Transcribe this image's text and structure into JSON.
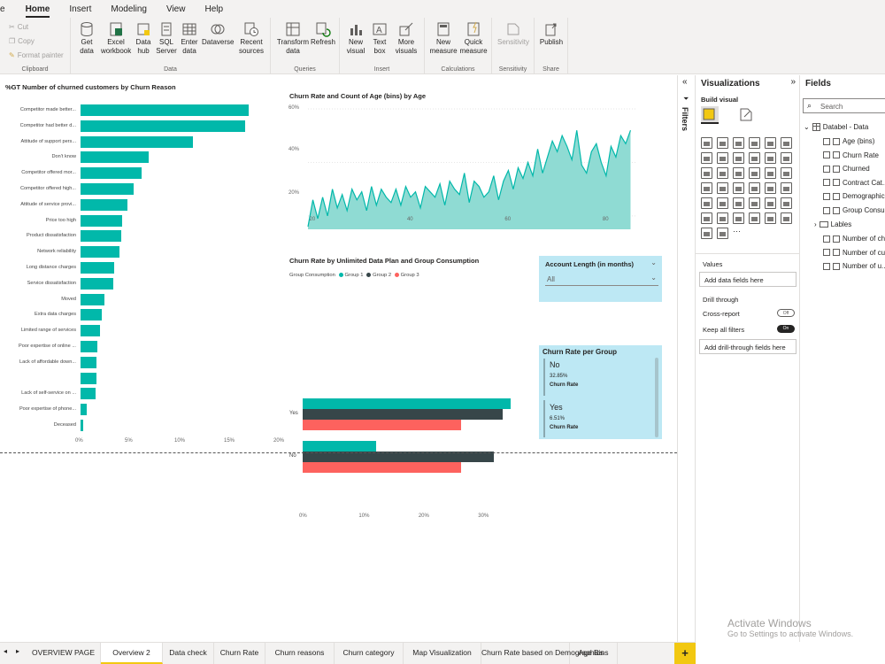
{
  "menu": {
    "tabs": [
      "e",
      "Home",
      "Insert",
      "Modeling",
      "View",
      "Help"
    ],
    "active": "Home"
  },
  "ribbon": {
    "clipboard": {
      "cut": "Cut",
      "copy": "Copy",
      "format_painter": "Format painter",
      "label": "Clipboard"
    },
    "data": {
      "get_data": "Get\ndata",
      "excel": "Excel\nworkbook",
      "data_hub": "Data\nhub",
      "sql": "SQL\nServer",
      "enter": "Enter\ndata",
      "dataverse": "Dataverse",
      "recent": "Recent\nsources",
      "label": "Data"
    },
    "queries": {
      "transform": "Transform\ndata",
      "refresh": "Refresh",
      "label": "Queries"
    },
    "insert": {
      "new_visual": "New\nvisual",
      "text_box": "Text\nbox",
      "more_visuals": "More\nvisuals",
      "label": "Insert"
    },
    "calculations": {
      "new_measure": "New\nmeasure",
      "quick_measure": "Quick\nmeasure",
      "label": "Calculations"
    },
    "sensitivity": {
      "btn": "Sensitivity",
      "label": "Sensitivity"
    },
    "share": {
      "publish": "Publish",
      "label": "Share"
    }
  },
  "churn_reason_chart": {
    "title": "%GT Number of churned customers by Churn Reason",
    "x_ticks": [
      "0%",
      "5%",
      "10%",
      "15%",
      "20%"
    ]
  },
  "age_chart": {
    "title": "Churn Rate and Count of Age (bins) by Age",
    "y_ticks": [
      "60%",
      "40%",
      "20%"
    ],
    "x_ticks": [
      "20",
      "40",
      "60",
      "80"
    ]
  },
  "plan_chart": {
    "title": "Churn Rate by Unlimited Data Plan and Group Consumption",
    "legend_title": "Group Consumption",
    "legend": [
      "Group 1",
      "Group 2",
      "Group 3"
    ],
    "x_ticks": [
      "0%",
      "10%",
      "20%",
      "30%"
    ]
  },
  "slicer": {
    "title": "Account Length (in months)",
    "value": "All"
  },
  "card": {
    "title": "Churn Rate per Group",
    "items": [
      {
        "label": "No",
        "value": "32.85%",
        "caption": "Churn Rate"
      },
      {
        "label": "Yes",
        "value": "6.51%",
        "caption": "Churn Rate"
      }
    ]
  },
  "chart_data": [
    {
      "type": "bar",
      "title": "%GT Number of churned customers by Churn Reason",
      "orientation": "horizontal",
      "categories": [
        "Competitor made better...",
        "Competitor had better d...",
        "Attitude of support pers...",
        "Don't know",
        "Competitor offered mor...",
        "Competitor offered high...",
        "Attitude of service provi...",
        "Price too high",
        "Product dissatisfaction",
        "Network reliability",
        "Long distance charges",
        "Service dissatisfaction",
        "Moved",
        "Extra data charges",
        "Limited range of services",
        "Poor expertise of online ...",
        "Lack of affordable down...",
        "",
        "Lack of self-service on ...",
        "Poor expertise of phone...",
        "Deceased"
      ],
      "values": [
        17.0,
        16.6,
        11.3,
        6.9,
        6.2,
        5.4,
        4.7,
        4.2,
        4.1,
        3.9,
        3.4,
        3.3,
        2.4,
        2.1,
        2.0,
        1.7,
        1.6,
        1.6,
        1.5,
        0.6,
        0.3
      ],
      "xlim": [
        0,
        20
      ],
      "color": "#01b8aa"
    },
    {
      "type": "area",
      "title": "Churn Rate and Count of Age (bins) by Age",
      "x": [
        19,
        20,
        21,
        22,
        23,
        24,
        25,
        26,
        27,
        28,
        29,
        30,
        31,
        32,
        33,
        34,
        35,
        36,
        37,
        38,
        39,
        40,
        41,
        42,
        43,
        44,
        45,
        46,
        47,
        48,
        49,
        50,
        51,
        52,
        53,
        54,
        55,
        56,
        57,
        58,
        59,
        60,
        61,
        62,
        63,
        64,
        65,
        66,
        67,
        68,
        69,
        70,
        71,
        72,
        73,
        74,
        75,
        76,
        77,
        78,
        79,
        80,
        81,
        82,
        83,
        84,
        85
      ],
      "y": [
        16,
        26,
        19,
        27,
        20,
        30,
        23,
        28,
        22,
        30,
        26,
        29,
        22,
        31,
        24,
        30,
        27,
        25,
        30,
        24,
        31,
        27,
        29,
        23,
        31,
        29,
        27,
        32,
        24,
        33,
        30,
        28,
        36,
        25,
        33,
        31,
        27,
        29,
        35,
        26,
        33,
        37,
        30,
        38,
        34,
        40,
        35,
        45,
        36,
        42,
        48,
        44,
        50,
        46,
        41,
        52,
        39,
        36,
        44,
        47,
        40,
        35,
        46,
        42,
        50,
        47,
        52
      ],
      "ylim": [
        15,
        60
      ],
      "xlim": [
        19,
        86
      ],
      "color": "#01b8aa"
    },
    {
      "type": "bar",
      "title": "Churn Rate by Unlimited Data Plan and Group Consumption",
      "orientation": "horizontal",
      "categories": [
        "Yes",
        "No"
      ],
      "series": [
        {
          "name": "Group 1",
          "values": [
            34.9,
            12.3
          ],
          "color": "#01b8aa"
        },
        {
          "name": "Group 2",
          "values": [
            33.5,
            32.0
          ],
          "color": "#374649"
        },
        {
          "name": "Group 3",
          "values": [
            26.5,
            26.5
          ],
          "color": "#fd625e"
        }
      ],
      "xlim": [
        0,
        35
      ]
    }
  ],
  "filters": {
    "label": "Filters"
  },
  "viz_pane": {
    "title": "Visualizations",
    "build_visual": "Build visual",
    "values_label": "Values",
    "add_data_fields": "Add data fields here",
    "drill_through": "Drill through",
    "cross_report": "Cross-report",
    "cross_report_state": "Off",
    "keep_filters": "Keep all filters",
    "keep_filters_state": "On",
    "add_drill": "Add drill-through fields here"
  },
  "fields_pane": {
    "title": "Fields",
    "search_placeholder": "Search",
    "table": "Databel - Data",
    "fields": [
      "Age (bins)",
      "Churn Rate",
      "Churned",
      "Contract Cat...",
      "Demographic...",
      "Group Consu..."
    ],
    "folder": "Lables",
    "folder_items": [
      "Number of ch...",
      "Number of cu...",
      "Number of u..."
    ]
  },
  "page_tabs": [
    "OVERVIEW PAGE",
    "Overview 2",
    "Data check",
    "Churn Rate",
    "Churn reasons",
    "Churn category",
    "Map Visualization",
    "Churn Rate based on Demographics",
    "Age Bins"
  ],
  "active_page": "Overview 2",
  "watermark": {
    "line1": "Activate Windows",
    "line2": "Go to Settings to activate Windows."
  }
}
